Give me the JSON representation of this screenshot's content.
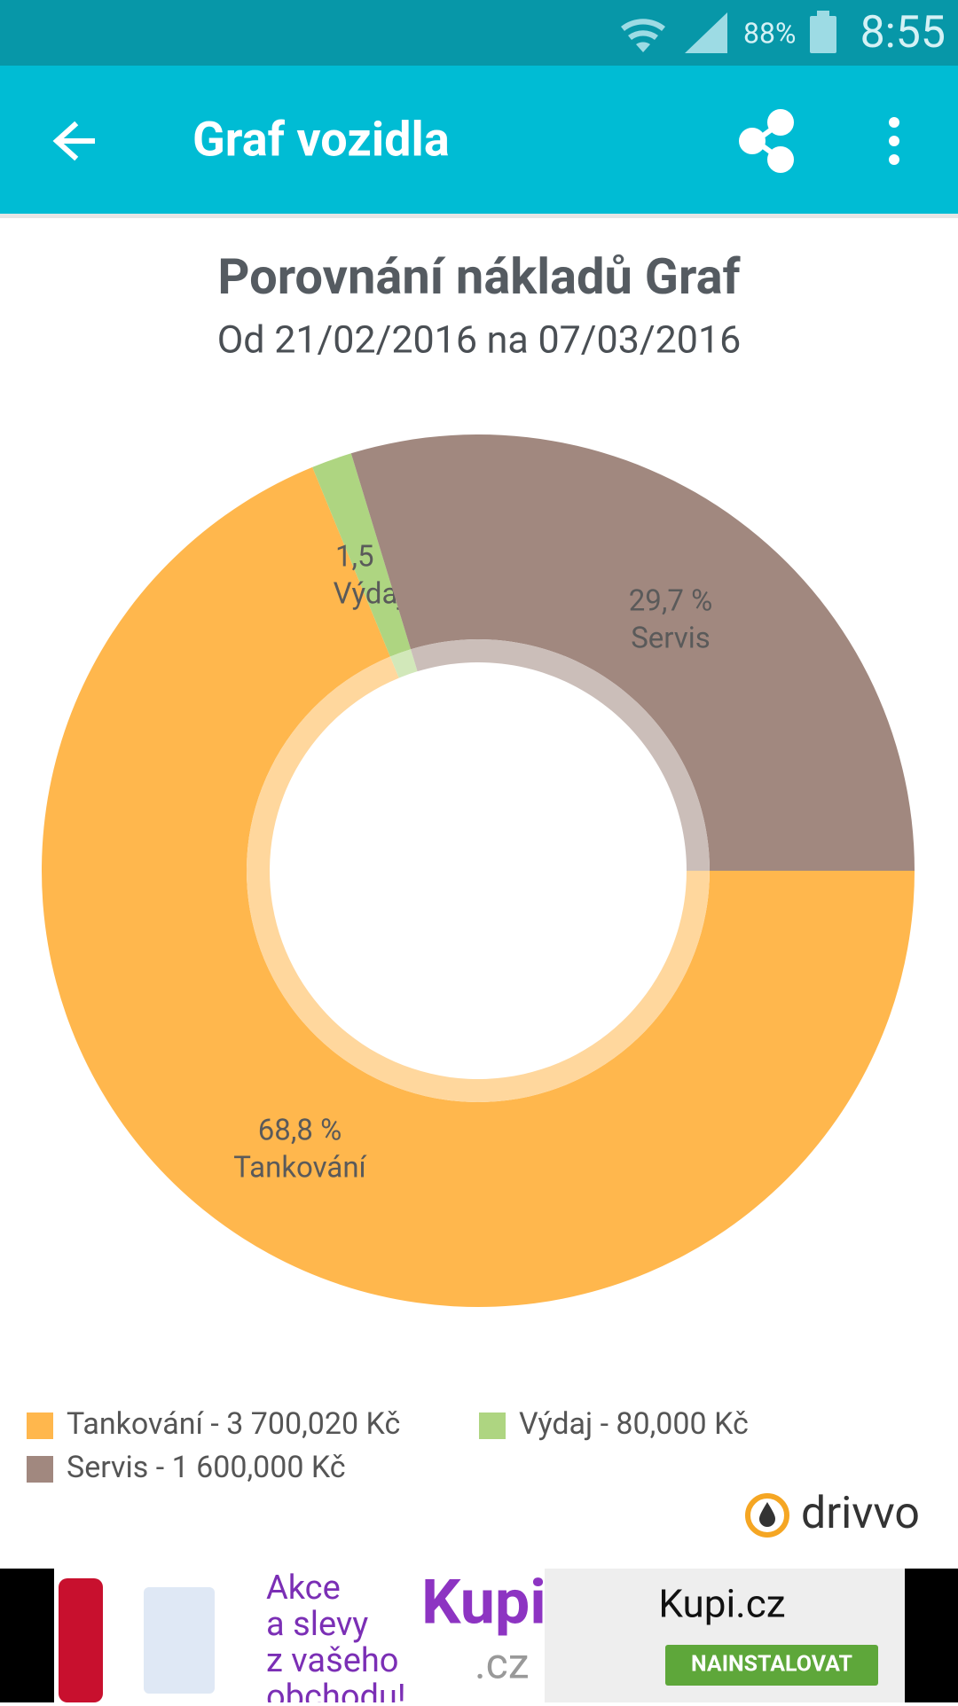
{
  "status_bar": {
    "battery": "88%",
    "time": "8:55"
  },
  "app_bar": {
    "title": "Graf vozidla"
  },
  "chart_data": {
    "type": "pie",
    "title": "Porovnání nákladů Graf",
    "subtitle": "Od 21/02/2016 na 07/03/2016",
    "categories": [
      "Tankování",
      "Výdaj",
      "Servis"
    ],
    "values": [
      68.8,
      1.5,
      29.7
    ],
    "value_labels": [
      "68,8 %",
      "1,5 %",
      "29,7 %"
    ],
    "colors": [
      "#ffb74d",
      "#aed581",
      "#a1887f"
    ],
    "legend": [
      "Tankování - 3 700,020 Kč",
      "Výdaj - 80,000 Kč",
      "Servis - 1 600,000 Kč"
    ]
  },
  "brand": "drivvo",
  "ad": {
    "headline": [
      "Akce",
      "a slevy",
      "z vašeho",
      "obchodu!"
    ],
    "logo": "Kupi",
    "logo_suffix": ".cz",
    "name": "Kupi.cz",
    "button": "NAINSTALOVAT"
  }
}
